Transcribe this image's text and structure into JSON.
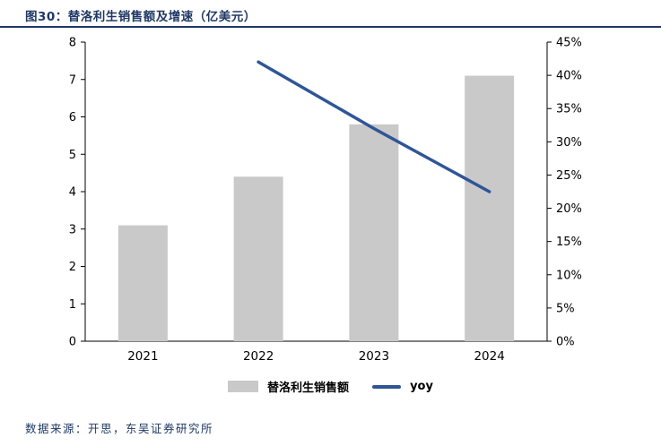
{
  "header": {
    "title": "图30：替洛利生销售额及增速（亿美元）"
  },
  "colors": {
    "accent": "#1F3864",
    "bar_fill": "#C9C9C9",
    "line": "#2F5597",
    "axis": "#000000"
  },
  "chart_data": {
    "type": "combo-bar-line",
    "title": "图30：替洛利生销售额及增速（亿美元）",
    "categories": [
      "2021",
      "2022",
      "2023",
      "2024"
    ],
    "series": [
      {
        "name": "替洛利生销售额",
        "type": "bar",
        "axis": "left",
        "values": [
          3.1,
          4.4,
          5.8,
          7.1
        ]
      },
      {
        "name": "yoy",
        "type": "line",
        "axis": "right",
        "values": [
          null,
          42,
          32,
          22.5
        ]
      }
    ],
    "left_axis": {
      "min": 0,
      "max": 8,
      "step": 1,
      "ticks": [
        "0",
        "1",
        "2",
        "3",
        "4",
        "5",
        "6",
        "7",
        "8"
      ]
    },
    "right_axis": {
      "min": 0,
      "max": 45,
      "step": 5,
      "ticks": [
        "0%",
        "5%",
        "10%",
        "15%",
        "20%",
        "25%",
        "30%",
        "35%",
        "40%",
        "45%"
      ]
    },
    "grid": false,
    "legend_position": "bottom"
  },
  "legend": {
    "items": [
      {
        "label": "替洛利生销售额",
        "swatch": "bar"
      },
      {
        "label": "yoy",
        "swatch": "line"
      }
    ]
  },
  "footer": {
    "source": "数据来源：开思，东吴证券研究所"
  }
}
